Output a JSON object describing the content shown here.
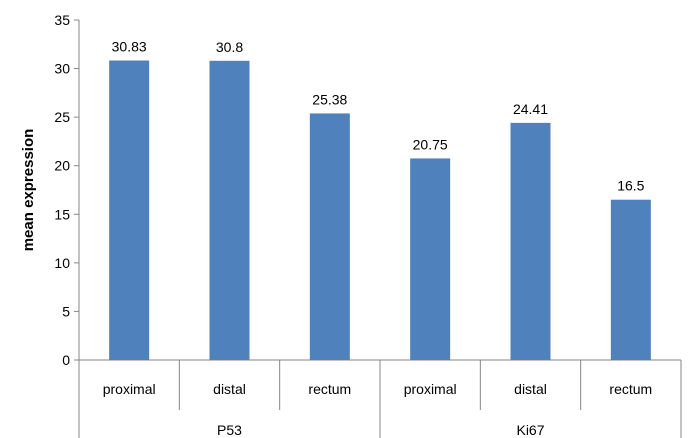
{
  "chart_data": {
    "type": "bar",
    "title": "",
    "xlabel": "",
    "ylabel": "mean expression",
    "ylim": [
      0,
      35
    ],
    "yticks": [
      0,
      5,
      10,
      15,
      20,
      25,
      30,
      35
    ],
    "grid": false,
    "legend": "none",
    "bar_color": "#4F81BD",
    "groups": [
      {
        "label": "P53",
        "categories": [
          "proximal",
          "distal",
          "rectum"
        ]
      },
      {
        "label": "Ki67",
        "categories": [
          "proximal",
          "distal",
          "rectum"
        ]
      }
    ],
    "categories": [
      "proximal",
      "distal",
      "rectum",
      "proximal",
      "distal",
      "rectum"
    ],
    "values": [
      30.83,
      30.8,
      25.38,
      20.75,
      24.41,
      16.5
    ],
    "data_labels": [
      "30.83",
      "30.8",
      "25.38",
      "20.75",
      "24.41",
      "16.5"
    ]
  }
}
